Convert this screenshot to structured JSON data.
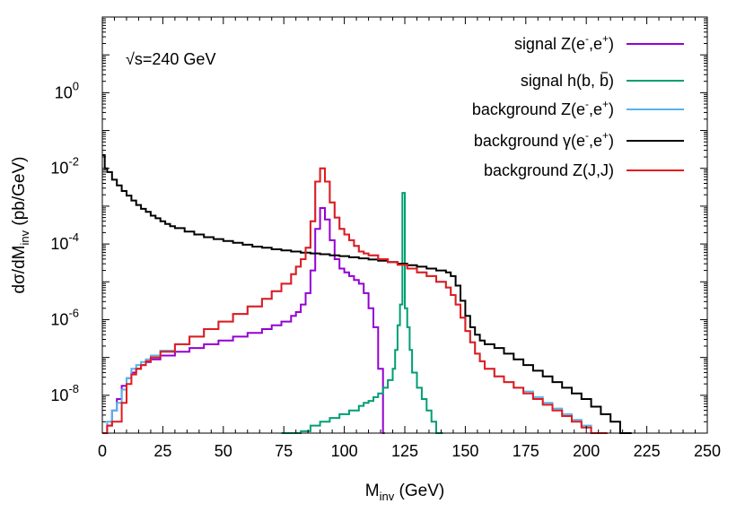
{
  "chart_data": {
    "type": "line",
    "title": "",
    "annotation": {
      "sqrt_symbol": "√",
      "text": "s=240 GeV"
    },
    "xlabel": {
      "main": "M",
      "sub": "inv",
      "unit": " (GeV)"
    },
    "ylabel": {
      "pre": "dσ/dM",
      "sub": "inv",
      "unit": " (pb/GeV)"
    },
    "xlim": [
      0,
      250
    ],
    "ylim": [
      1e-09,
      100
    ],
    "yscale": "log",
    "xticks": [
      0,
      25,
      50,
      75,
      100,
      125,
      150,
      175,
      200,
      225,
      250
    ],
    "yticks": [
      {
        "exp": -8,
        "label_base": "10",
        "label_exp": "-8"
      },
      {
        "exp": -6,
        "label_base": "10",
        "label_exp": "-6"
      },
      {
        "exp": -4,
        "label_base": "10",
        "label_exp": "-4"
      },
      {
        "exp": -2,
        "label_base": "10",
        "label_exp": "-2"
      },
      {
        "exp": 0,
        "label_base": "10",
        "label_exp": "0"
      }
    ],
    "grid": false,
    "legend_position": "top-right",
    "series": [
      {
        "key": "sig_z",
        "name": {
          "pre": "signal Z(e",
          "sup1": "-",
          "mid": ",e",
          "sup2": "+",
          "post": ")"
        },
        "color": "#9400d3",
        "points": [
          [
            0,
            -9.2
          ],
          [
            2,
            -8.8
          ],
          [
            4,
            -8.4
          ],
          [
            6,
            -8.1
          ],
          [
            8,
            -7.75
          ],
          [
            10,
            -7.55
          ],
          [
            12,
            -7.4
          ],
          [
            14,
            -7.3
          ],
          [
            16,
            -7.2
          ],
          [
            18,
            -7.12
          ],
          [
            20,
            -7.05
          ],
          [
            24,
            -6.95
          ],
          [
            30,
            -6.85
          ],
          [
            36,
            -6.75
          ],
          [
            42,
            -6.65
          ],
          [
            48,
            -6.55
          ],
          [
            54,
            -6.45
          ],
          [
            60,
            -6.35
          ],
          [
            66,
            -6.25
          ],
          [
            70,
            -6.15
          ],
          [
            74,
            -6.05
          ],
          [
            78,
            -5.9
          ],
          [
            80,
            -5.8
          ],
          [
            82,
            -5.6
          ],
          [
            84,
            -5.3
          ],
          [
            86,
            -4.7
          ],
          [
            88,
            -3.6
          ],
          [
            90,
            -3.05
          ],
          [
            92,
            -3.35
          ],
          [
            94,
            -3.9
          ],
          [
            96,
            -4.4
          ],
          [
            98,
            -4.65
          ],
          [
            100,
            -4.75
          ],
          [
            102,
            -4.85
          ],
          [
            104,
            -4.95
          ],
          [
            106,
            -5.05
          ],
          [
            108,
            -5.3
          ],
          [
            110,
            -5.7
          ],
          [
            112,
            -6.2
          ],
          [
            114,
            -7.3
          ],
          [
            116,
            -9.2
          ]
        ]
      },
      {
        "key": "sig_h",
        "name": {
          "pre": "signal h(b, ",
          "bar": "b",
          "post": ")"
        },
        "color": "#009e73",
        "points": [
          [
            74,
            -9.3
          ],
          [
            78,
            -9.05
          ],
          [
            82,
            -8.95
          ],
          [
            86,
            -8.8
          ],
          [
            90,
            -8.7
          ],
          [
            94,
            -8.6
          ],
          [
            98,
            -8.5
          ],
          [
            102,
            -8.4
          ],
          [
            106,
            -8.28
          ],
          [
            108,
            -8.2
          ],
          [
            110,
            -8.15
          ],
          [
            112,
            -8.05
          ],
          [
            114,
            -7.95
          ],
          [
            116,
            -7.8
          ],
          [
            118,
            -7.6
          ],
          [
            120,
            -7.3
          ],
          [
            121,
            -6.8
          ],
          [
            122,
            -6.15
          ],
          [
            123,
            -5.6
          ],
          [
            124,
            -2.65
          ],
          [
            125,
            -5.7
          ],
          [
            126,
            -6.2
          ],
          [
            127,
            -6.8
          ],
          [
            128,
            -7.4
          ],
          [
            130,
            -7.8
          ],
          [
            132,
            -8.1
          ],
          [
            134,
            -8.4
          ],
          [
            136,
            -8.7
          ],
          [
            138,
            -9.0
          ],
          [
            140,
            -9.3
          ]
        ]
      },
      {
        "key": "bkg_z",
        "name": {
          "pre": "background Z(e",
          "sup1": "-",
          "mid": ",e",
          "sup2": "+",
          "post": ")"
        },
        "color": "#56b4e9",
        "points": [
          [
            0,
            -9.0
          ],
          [
            2,
            -8.7
          ],
          [
            4,
            -8.4
          ],
          [
            6,
            -8.2
          ],
          [
            8,
            -7.85
          ],
          [
            10,
            -7.55
          ],
          [
            12,
            -7.3
          ],
          [
            14,
            -7.2
          ],
          [
            16,
            -7.12
          ],
          [
            18,
            -7.05
          ],
          [
            20,
            -6.95
          ],
          [
            24,
            -6.82
          ],
          [
            30,
            -6.65
          ],
          [
            36,
            -6.45
          ],
          [
            42,
            -6.25
          ],
          [
            48,
            -6.05
          ],
          [
            54,
            -5.85
          ],
          [
            60,
            -5.65
          ],
          [
            66,
            -5.45
          ],
          [
            70,
            -5.25
          ],
          [
            74,
            -5.05
          ],
          [
            78,
            -4.8
          ],
          [
            80,
            -4.6
          ],
          [
            82,
            -4.4
          ],
          [
            84,
            -4.1
          ],
          [
            86,
            -3.4
          ],
          [
            88,
            -2.35
          ],
          [
            90,
            -2.0
          ],
          [
            92,
            -2.35
          ],
          [
            94,
            -2.9
          ],
          [
            96,
            -3.3
          ],
          [
            98,
            -3.6
          ],
          [
            100,
            -3.75
          ],
          [
            102,
            -3.9
          ],
          [
            104,
            -4.05
          ],
          [
            106,
            -4.2
          ],
          [
            108,
            -4.25
          ],
          [
            110,
            -4.3
          ],
          [
            114,
            -4.4
          ],
          [
            118,
            -4.48
          ],
          [
            122,
            -4.55
          ],
          [
            126,
            -4.65
          ],
          [
            130,
            -4.75
          ],
          [
            134,
            -4.85
          ],
          [
            138,
            -5.0
          ],
          [
            142,
            -5.15
          ],
          [
            144,
            -5.35
          ],
          [
            146,
            -5.6
          ],
          [
            148,
            -5.95
          ],
          [
            150,
            -6.3
          ],
          [
            152,
            -6.6
          ],
          [
            154,
            -6.9
          ],
          [
            156,
            -7.1
          ],
          [
            158,
            -7.3
          ],
          [
            162,
            -7.5
          ],
          [
            166,
            -7.65
          ],
          [
            170,
            -7.8
          ],
          [
            174,
            -7.9
          ],
          [
            178,
            -8.05
          ],
          [
            182,
            -8.2
          ],
          [
            186,
            -8.35
          ],
          [
            190,
            -8.5
          ],
          [
            194,
            -8.65
          ],
          [
            198,
            -8.8
          ],
          [
            202,
            -9.0
          ],
          [
            206,
            -9.3
          ]
        ]
      },
      {
        "key": "bkg_gamma",
        "name": {
          "pre": "background γ(e",
          "sup1": "-",
          "mid": ",e",
          "sup2": "+",
          "post": ")"
        },
        "color": "#000000",
        "points": [
          [
            0,
            -1.65
          ],
          [
            1,
            -2.0
          ],
          [
            2,
            -2.1
          ],
          [
            4,
            -2.3
          ],
          [
            6,
            -2.45
          ],
          [
            8,
            -2.6
          ],
          [
            10,
            -2.72
          ],
          [
            12,
            -2.85
          ],
          [
            14,
            -2.97
          ],
          [
            16,
            -3.07
          ],
          [
            18,
            -3.15
          ],
          [
            20,
            -3.25
          ],
          [
            22,
            -3.32
          ],
          [
            24,
            -3.4
          ],
          [
            26,
            -3.47
          ],
          [
            28,
            -3.53
          ],
          [
            30,
            -3.58
          ],
          [
            34,
            -3.67
          ],
          [
            38,
            -3.75
          ],
          [
            42,
            -3.82
          ],
          [
            46,
            -3.87
          ],
          [
            50,
            -3.92
          ],
          [
            54,
            -3.97
          ],
          [
            58,
            -4.02
          ],
          [
            62,
            -4.07
          ],
          [
            66,
            -4.1
          ],
          [
            70,
            -4.14
          ],
          [
            74,
            -4.17
          ],
          [
            78,
            -4.2
          ],
          [
            82,
            -4.23
          ],
          [
            86,
            -4.25
          ],
          [
            90,
            -4.27
          ],
          [
            94,
            -4.3
          ],
          [
            98,
            -4.32
          ],
          [
            102,
            -4.35
          ],
          [
            106,
            -4.38
          ],
          [
            110,
            -4.41
          ],
          [
            114,
            -4.44
          ],
          [
            118,
            -4.48
          ],
          [
            122,
            -4.52
          ],
          [
            126,
            -4.56
          ],
          [
            130,
            -4.6
          ],
          [
            134,
            -4.65
          ],
          [
            138,
            -4.7
          ],
          [
            142,
            -4.75
          ],
          [
            144,
            -4.85
          ],
          [
            146,
            -5.1
          ],
          [
            148,
            -5.5
          ],
          [
            150,
            -5.9
          ],
          [
            152,
            -6.2
          ],
          [
            154,
            -6.4
          ],
          [
            156,
            -6.55
          ],
          [
            158,
            -6.65
          ],
          [
            162,
            -6.75
          ],
          [
            166,
            -6.9
          ],
          [
            170,
            -7.05
          ],
          [
            174,
            -7.2
          ],
          [
            178,
            -7.35
          ],
          [
            182,
            -7.5
          ],
          [
            186,
            -7.65
          ],
          [
            190,
            -7.8
          ],
          [
            194,
            -7.95
          ],
          [
            198,
            -8.1
          ],
          [
            202,
            -8.3
          ],
          [
            206,
            -8.5
          ],
          [
            210,
            -8.7
          ],
          [
            214,
            -9.0
          ],
          [
            218,
            -9.2
          ]
        ]
      },
      {
        "key": "bkg_zjj",
        "name": {
          "pre": "background Z(J,J)",
          "post": ""
        },
        "color": "#e41a1c",
        "points": [
          [
            0,
            -9.0
          ],
          [
            2,
            -8.8
          ],
          [
            4,
            -8.7
          ],
          [
            6,
            -8.7
          ],
          [
            8,
            -8.2
          ],
          [
            10,
            -7.7
          ],
          [
            12,
            -7.45
          ],
          [
            14,
            -7.3
          ],
          [
            16,
            -7.2
          ],
          [
            18,
            -7.1
          ],
          [
            20,
            -7.0
          ],
          [
            24,
            -6.85
          ],
          [
            30,
            -6.65
          ],
          [
            36,
            -6.45
          ],
          [
            42,
            -6.25
          ],
          [
            48,
            -6.05
          ],
          [
            54,
            -5.85
          ],
          [
            60,
            -5.65
          ],
          [
            66,
            -5.45
          ],
          [
            70,
            -5.25
          ],
          [
            74,
            -5.05
          ],
          [
            78,
            -4.8
          ],
          [
            80,
            -4.6
          ],
          [
            82,
            -4.4
          ],
          [
            84,
            -4.1
          ],
          [
            86,
            -3.4
          ],
          [
            88,
            -2.35
          ],
          [
            90,
            -2.0
          ],
          [
            92,
            -2.35
          ],
          [
            94,
            -2.9
          ],
          [
            96,
            -3.3
          ],
          [
            98,
            -3.6
          ],
          [
            100,
            -3.75
          ],
          [
            102,
            -3.9
          ],
          [
            104,
            -4.05
          ],
          [
            106,
            -4.2
          ],
          [
            108,
            -4.25
          ],
          [
            110,
            -4.3
          ],
          [
            114,
            -4.4
          ],
          [
            118,
            -4.48
          ],
          [
            122,
            -4.55
          ],
          [
            126,
            -4.65
          ],
          [
            130,
            -4.75
          ],
          [
            134,
            -4.85
          ],
          [
            138,
            -5.0
          ],
          [
            142,
            -5.15
          ],
          [
            144,
            -5.35
          ],
          [
            146,
            -5.6
          ],
          [
            148,
            -5.95
          ],
          [
            150,
            -6.3
          ],
          [
            152,
            -6.6
          ],
          [
            154,
            -6.9
          ],
          [
            156,
            -7.1
          ],
          [
            158,
            -7.3
          ],
          [
            162,
            -7.5
          ],
          [
            166,
            -7.65
          ],
          [
            170,
            -7.8
          ],
          [
            174,
            -7.95
          ],
          [
            178,
            -8.1
          ],
          [
            182,
            -8.25
          ],
          [
            186,
            -8.4
          ],
          [
            190,
            -8.55
          ],
          [
            194,
            -8.7
          ],
          [
            198,
            -8.85
          ],
          [
            202,
            -9.0
          ],
          [
            206,
            -9.2
          ],
          [
            208,
            -9.3
          ]
        ]
      }
    ]
  }
}
